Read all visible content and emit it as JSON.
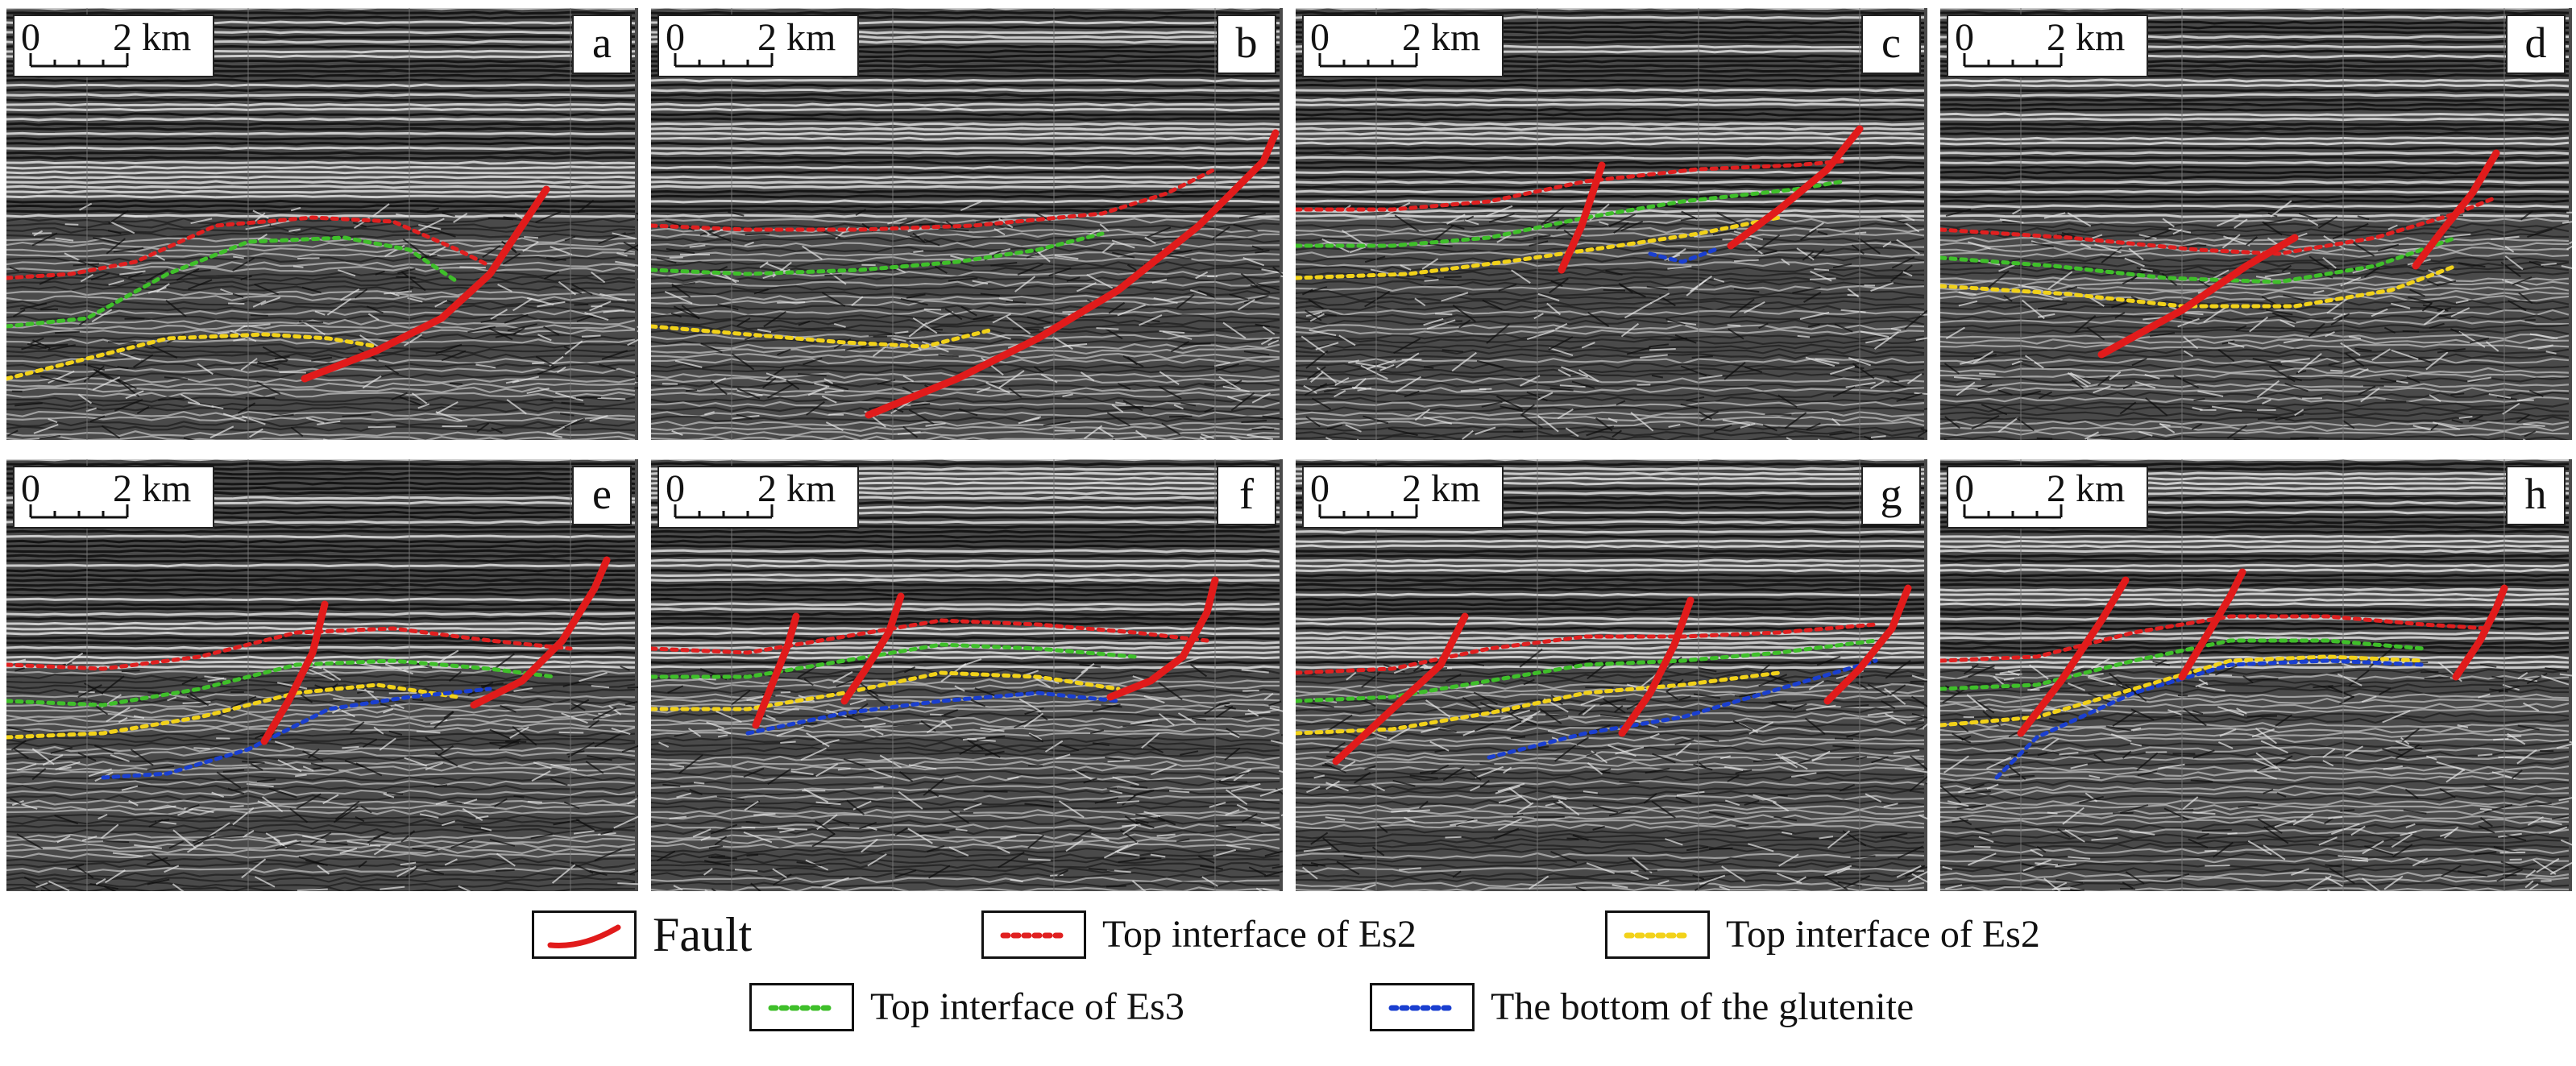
{
  "colors": {
    "fault": "#e11b1b",
    "top_es2_red": "#e02020",
    "top_es2_yellow": "#f2d21a",
    "top_es3": "#3fbf2a",
    "glutenite_bottom": "#1a3fd0",
    "seismic_dark": "#1b1b1b",
    "seismic_light": "#dcdcdc"
  },
  "scale_bar": {
    "start": "0",
    "end": "2 km"
  },
  "panels": [
    {
      "letter": "a"
    },
    {
      "letter": "b"
    },
    {
      "letter": "c"
    },
    {
      "letter": "d"
    },
    {
      "letter": "e"
    },
    {
      "letter": "f"
    },
    {
      "letter": "g"
    },
    {
      "letter": "h"
    }
  ],
  "legend": [
    {
      "label": "Fault",
      "symbol": "fault-line-icon",
      "color": "#e11b1b"
    },
    {
      "label": "Top interface of Es2",
      "symbol": "dotted-line-icon",
      "color": "#e02020"
    },
    {
      "label": "Top interface of Es2",
      "symbol": "dotted-line-icon",
      "color": "#f2d21a"
    },
    {
      "label": "Top interface of Es3",
      "symbol": "dotted-line-icon",
      "color": "#3fbf2a"
    },
    {
      "label": "The bottom of the glutenite",
      "symbol": "dotted-line-icon",
      "color": "#1a3fd0"
    }
  ]
}
